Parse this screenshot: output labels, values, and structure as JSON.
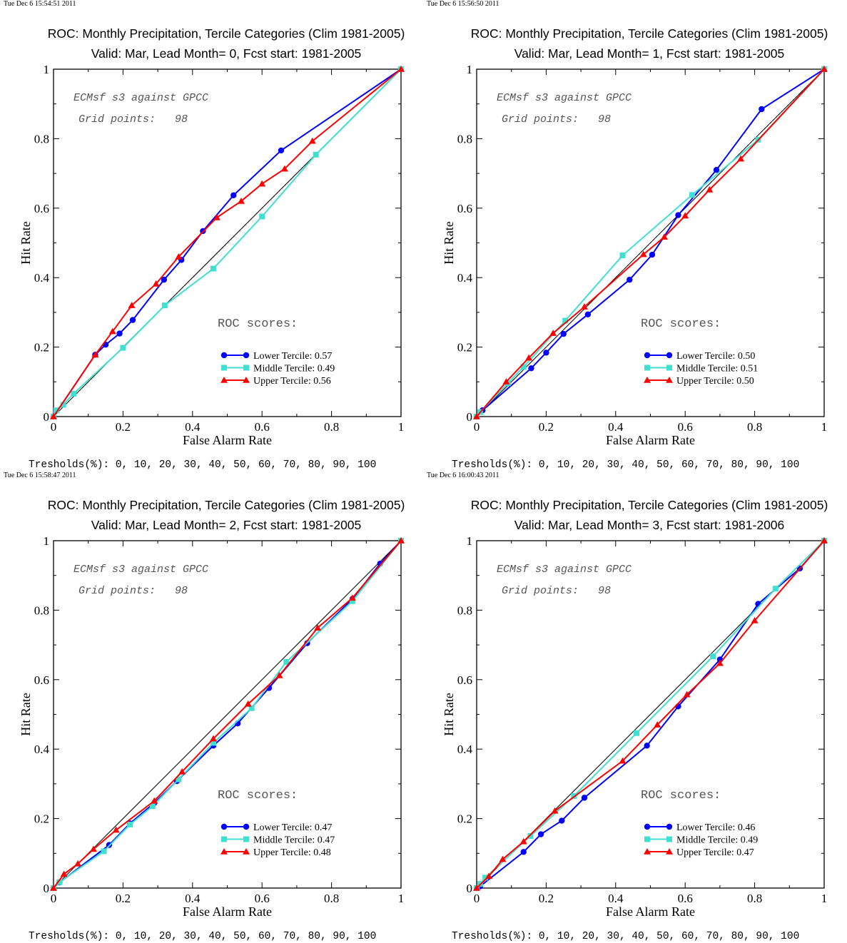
{
  "thresholds_label": "Tresholds(%): 0, 10, 20, 30, 40, 50, 60, 70, 80, 90, 100",
  "colors": {
    "Lower Tercile": "#0000ff",
    "Middle Tercile": "#40e0d0",
    "Upper Tercile": "#ff0000",
    "diagonal": "#000000"
  },
  "chart_data": [
    {
      "type": "line",
      "timestamp": "Tue Dec  6 15:54:51 2011",
      "title": "ROC: Monthly Precipitation, Tercile Categories (Clim 1981-2005)",
      "subtitle": "Valid: Mar, Lead Month= 0, Fcst start: 1981-2005",
      "xlabel": "False Alarm Rate",
      "ylabel": "Hit Rate",
      "xlim": [
        0,
        1
      ],
      "ylim": [
        0,
        1
      ],
      "x_ticks": [
        "0",
        "0.2",
        "0.4",
        "0.6",
        "0.8",
        "1"
      ],
      "y_ticks": [
        "0",
        "0.2",
        "0.4",
        "0.6",
        "0.8",
        "1"
      ],
      "annotation_1": "ECMsf s3 against GPCC",
      "annotation_2": "Grid points:   98",
      "scores_title": "ROC scores:",
      "diagonal": true,
      "series": [
        {
          "name": "Lower Tercile",
          "label": "Lower Tercile: 0.57",
          "marker": "circle",
          "color": "#0000ff",
          "x": [
            0,
            0.12,
            0.15,
            0.19,
            0.228,
            0.318,
            0.368,
            0.43,
            0.518,
            0.655,
            1
          ],
          "y": [
            0,
            0.178,
            0.207,
            0.239,
            0.278,
            0.394,
            0.451,
            0.534,
            0.637,
            0.766,
            1
          ]
        },
        {
          "name": "Middle Tercile",
          "label": "Middle Tercile: 0.49",
          "marker": "square",
          "color": "#40e0d0",
          "x": [
            0,
            0.008,
            0.028,
            0.058,
            0.2,
            0.32,
            0.46,
            0.6,
            0.755,
            1
          ],
          "y": [
            0,
            0.018,
            0.034,
            0.066,
            0.198,
            0.32,
            0.426,
            0.576,
            0.754,
            1
          ]
        },
        {
          "name": "Upper Tercile",
          "label": "Upper Tercile: 0.56",
          "marker": "triangle",
          "color": "#ff0000",
          "x": [
            0,
            0.12,
            0.17,
            0.225,
            0.295,
            0.36,
            0.47,
            0.54,
            0.6,
            0.665,
            0.745,
            1
          ],
          "y": [
            0,
            0.178,
            0.245,
            0.32,
            0.382,
            0.46,
            0.573,
            0.62,
            0.67,
            0.713,
            0.793,
            1
          ]
        }
      ]
    },
    {
      "type": "line",
      "timestamp": "Tue Dec  6 15:56:50 2011",
      "title": "ROC: Monthly Precipitation, Tercile Categories (Clim 1981-2005)",
      "subtitle": "Valid: Mar, Lead Month= 1, Fcst start: 1981-2005",
      "xlabel": "False Alarm Rate",
      "ylabel": "Hit Rate",
      "xlim": [
        0,
        1
      ],
      "ylim": [
        0,
        1
      ],
      "x_ticks": [
        "0",
        "0.2",
        "0.4",
        "0.6",
        "0.8",
        "1"
      ],
      "y_ticks": [
        "0",
        "0.2",
        "0.4",
        "0.6",
        "0.8",
        "1"
      ],
      "annotation_1": "ECMsf s3 against GPCC",
      "annotation_2": "Grid points:   98",
      "scores_title": "ROC scores:",
      "diagonal": true,
      "series": [
        {
          "name": "Lower Tercile",
          "label": "Lower Tercile: 0.50",
          "marker": "circle",
          "color": "#0000ff",
          "x": [
            0,
            0.017,
            0.157,
            0.2,
            0.25,
            0.32,
            0.44,
            0.505,
            0.58,
            0.69,
            0.82,
            1
          ],
          "y": [
            0,
            0.018,
            0.139,
            0.184,
            0.238,
            0.294,
            0.394,
            0.466,
            0.58,
            0.71,
            0.885,
            1
          ]
        },
        {
          "name": "Middle Tercile",
          "label": "Middle Tercile: 0.51",
          "marker": "square",
          "color": "#40e0d0",
          "x": [
            0,
            0.01,
            0.09,
            0.135,
            0.255,
            0.42,
            0.62,
            0.81,
            1
          ],
          "y": [
            0,
            0.013,
            0.096,
            0.143,
            0.276,
            0.464,
            0.638,
            0.797,
            1
          ]
        },
        {
          "name": "Upper Tercile",
          "label": "Upper Tercile: 0.50",
          "marker": "triangle",
          "color": "#ff0000",
          "x": [
            0,
            0.085,
            0.15,
            0.22,
            0.31,
            0.48,
            0.54,
            0.6,
            0.67,
            0.76,
            1
          ],
          "y": [
            0,
            0.1,
            0.169,
            0.24,
            0.316,
            0.467,
            0.517,
            0.578,
            0.653,
            0.742,
            1
          ]
        }
      ]
    },
    {
      "type": "line",
      "timestamp": "Tue Dec  6 15:58:47 2011",
      "title": "ROC: Monthly Precipitation, Tercile Categories (Clim 1981-2005)",
      "subtitle": "Valid: Mar, Lead Month= 2, Fcst start: 1981-2005",
      "xlabel": "False Alarm Rate",
      "ylabel": "Hit Rate",
      "xlim": [
        0,
        1
      ],
      "ylim": [
        0,
        1
      ],
      "x_ticks": [
        "0",
        "0.2",
        "0.4",
        "0.6",
        "0.8",
        "1"
      ],
      "y_ticks": [
        "0",
        "0.2",
        "0.4",
        "0.6",
        "0.8",
        "1"
      ],
      "annotation_1": "ECMsf s3 against GPCC",
      "annotation_2": "Grid points:   98",
      "scores_title": "ROC scores:",
      "diagonal": true,
      "series": [
        {
          "name": "Lower Tercile",
          "label": "Lower Tercile: 0.47",
          "marker": "circle",
          "color": "#0000ff",
          "x": [
            0,
            0.017,
            0.16,
            0.22,
            0.29,
            0.355,
            0.46,
            0.53,
            0.62,
            0.73,
            0.86,
            0.94,
            1
          ],
          "y": [
            0,
            0.016,
            0.124,
            0.186,
            0.245,
            0.308,
            0.41,
            0.474,
            0.576,
            0.705,
            0.832,
            0.934,
            1
          ]
        },
        {
          "name": "Middle Tercile",
          "label": "Middle Tercile: 0.47",
          "marker": "square",
          "color": "#40e0d0",
          "x": [
            0,
            0.017,
            0.145,
            0.22,
            0.285,
            0.36,
            0.46,
            0.57,
            0.67,
            0.86,
            1
          ],
          "y": [
            0,
            0.017,
            0.106,
            0.183,
            0.236,
            0.313,
            0.418,
            0.518,
            0.651,
            0.826,
            1
          ]
        },
        {
          "name": "Upper Tercile",
          "label": "Upper Tercile: 0.48",
          "marker": "triangle",
          "color": "#ff0000",
          "x": [
            0,
            0.03,
            0.07,
            0.115,
            0.18,
            0.29,
            0.37,
            0.46,
            0.56,
            0.65,
            0.76,
            0.86,
            1
          ],
          "y": [
            0,
            0.04,
            0.07,
            0.112,
            0.167,
            0.251,
            0.335,
            0.43,
            0.53,
            0.612,
            0.749,
            0.835,
            1
          ]
        }
      ]
    },
    {
      "type": "line",
      "timestamp": "Tue Dec  6 16:00:43 2011",
      "title": "ROC: Monthly Precipitation, Tercile Categories (Clim 1981-2005)",
      "subtitle": "Valid: Mar, Lead Month= 3, Fcst start: 1981-2006",
      "xlabel": "False Alarm Rate",
      "ylabel": "Hit Rate",
      "xlim": [
        0,
        1
      ],
      "ylim": [
        0,
        1
      ],
      "x_ticks": [
        "0",
        "0.2",
        "0.4",
        "0.6",
        "0.8",
        "1"
      ],
      "y_ticks": [
        "0",
        "0.2",
        "0.4",
        "0.6",
        "0.8",
        "1"
      ],
      "annotation_1": "ECMsf s3 against GPCC",
      "annotation_2": "Grid points:   98",
      "scores_title": "ROC scores:",
      "diagonal": true,
      "series": [
        {
          "name": "Lower Tercile",
          "label": "Lower Tercile: 0.46",
          "marker": "circle",
          "color": "#0000ff",
          "x": [
            0,
            0.01,
            0.135,
            0.185,
            0.245,
            0.31,
            0.49,
            0.58,
            0.7,
            0.81,
            0.93,
            1
          ],
          "y": [
            0,
            0.005,
            0.104,
            0.155,
            0.194,
            0.26,
            0.41,
            0.523,
            0.658,
            0.818,
            0.92,
            1
          ]
        },
        {
          "name": "Middle Tercile",
          "label": "Middle Tercile: 0.49",
          "marker": "square",
          "color": "#40e0d0",
          "x": [
            0,
            0.01,
            0.025,
            0.155,
            0.28,
            0.46,
            0.68,
            0.86,
            1
          ],
          "y": [
            0,
            0.012,
            0.03,
            0.15,
            0.265,
            0.446,
            0.667,
            0.862,
            1
          ]
        },
        {
          "name": "Upper Tercile",
          "label": "Upper Tercile: 0.47",
          "marker": "triangle",
          "color": "#ff0000",
          "x": [
            0,
            0.035,
            0.075,
            0.135,
            0.225,
            0.42,
            0.52,
            0.605,
            0.7,
            0.8,
            1
          ],
          "y": [
            0,
            0.034,
            0.083,
            0.134,
            0.222,
            0.366,
            0.47,
            0.557,
            0.647,
            0.77,
            1
          ]
        }
      ]
    }
  ]
}
